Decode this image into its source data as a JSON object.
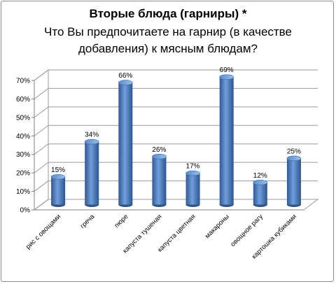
{
  "chart_data": {
    "type": "bar",
    "title": "Вторые блюда (гарниры) *",
    "subtitle": "Что Вы предпочитаете на гарнир (в качестве добавления) к мясным блюдам?",
    "categories": [
      "рис с овощами",
      "греча",
      "пюре",
      "капуста тушеная",
      "капуста цветная",
      "макароны",
      "овощное рагу",
      "картошка кубиками"
    ],
    "values": [
      15,
      34,
      66,
      26,
      17,
      69,
      12,
      25
    ],
    "data_labels": [
      "15%",
      "34%",
      "66%",
      "26%",
      "17%",
      "69%",
      "12%",
      "25%"
    ],
    "yticks": [
      "0%",
      "10%",
      "20%",
      "30%",
      "40%",
      "50%",
      "60%",
      "70%"
    ],
    "ylim": [
      0,
      70
    ],
    "grid": true,
    "legend": "none",
    "bar_color": "#4a7ebb"
  }
}
